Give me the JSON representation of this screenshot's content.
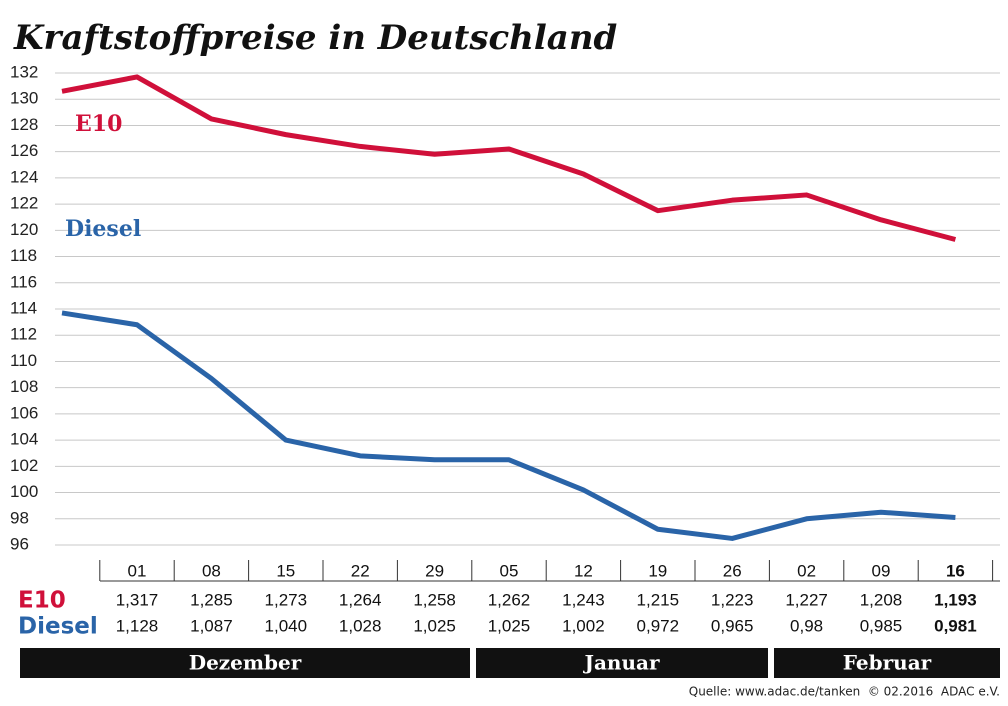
{
  "chart_data": {
    "type": "line",
    "title": "Kraftstoffpreise in Deutschland",
    "categories": [
      null,
      "01",
      "08",
      "15",
      "22",
      "29",
      "05",
      "12",
      "19",
      "26",
      "02",
      "09",
      "16"
    ],
    "series": [
      {
        "name": "E10",
        "color": "#d0103a",
        "values": [
          130.6,
          131.7,
          128.5,
          127.3,
          126.4,
          125.8,
          126.2,
          124.3,
          121.5,
          122.3,
          122.7,
          120.8,
          119.3
        ],
        "value_labels": [
          null,
          "1,317",
          "1,285",
          "1,273",
          "1,264",
          "1,258",
          "1,262",
          "1,243",
          "1,215",
          "1,223",
          "1,227",
          "1,208",
          "1,193"
        ]
      },
      {
        "name": "Diesel",
        "color": "#2a64a8",
        "values": [
          113.7,
          112.8,
          108.7,
          104.0,
          102.8,
          102.5,
          102.5,
          100.2,
          97.2,
          96.5,
          98.0,
          98.5,
          98.1
        ],
        "value_labels": [
          null,
          "1,128",
          "1,087",
          "1,040",
          "1,028",
          "1,025",
          "1,025",
          "1,002",
          "0,972",
          "0,965",
          "0,98",
          "0,985",
          "0,981"
        ]
      }
    ],
    "ylim": [
      96,
      132
    ],
    "yticks": [
      96,
      98,
      100,
      102,
      104,
      106,
      108,
      110,
      112,
      114,
      116,
      118,
      120,
      122,
      124,
      126,
      128,
      130,
      132
    ],
    "grid": true,
    "months": [
      "Dezember",
      "Januar",
      "Februar"
    ],
    "source": "Quelle: www.adac.de/tanken  © 02.2016  ADAC e.V."
  }
}
